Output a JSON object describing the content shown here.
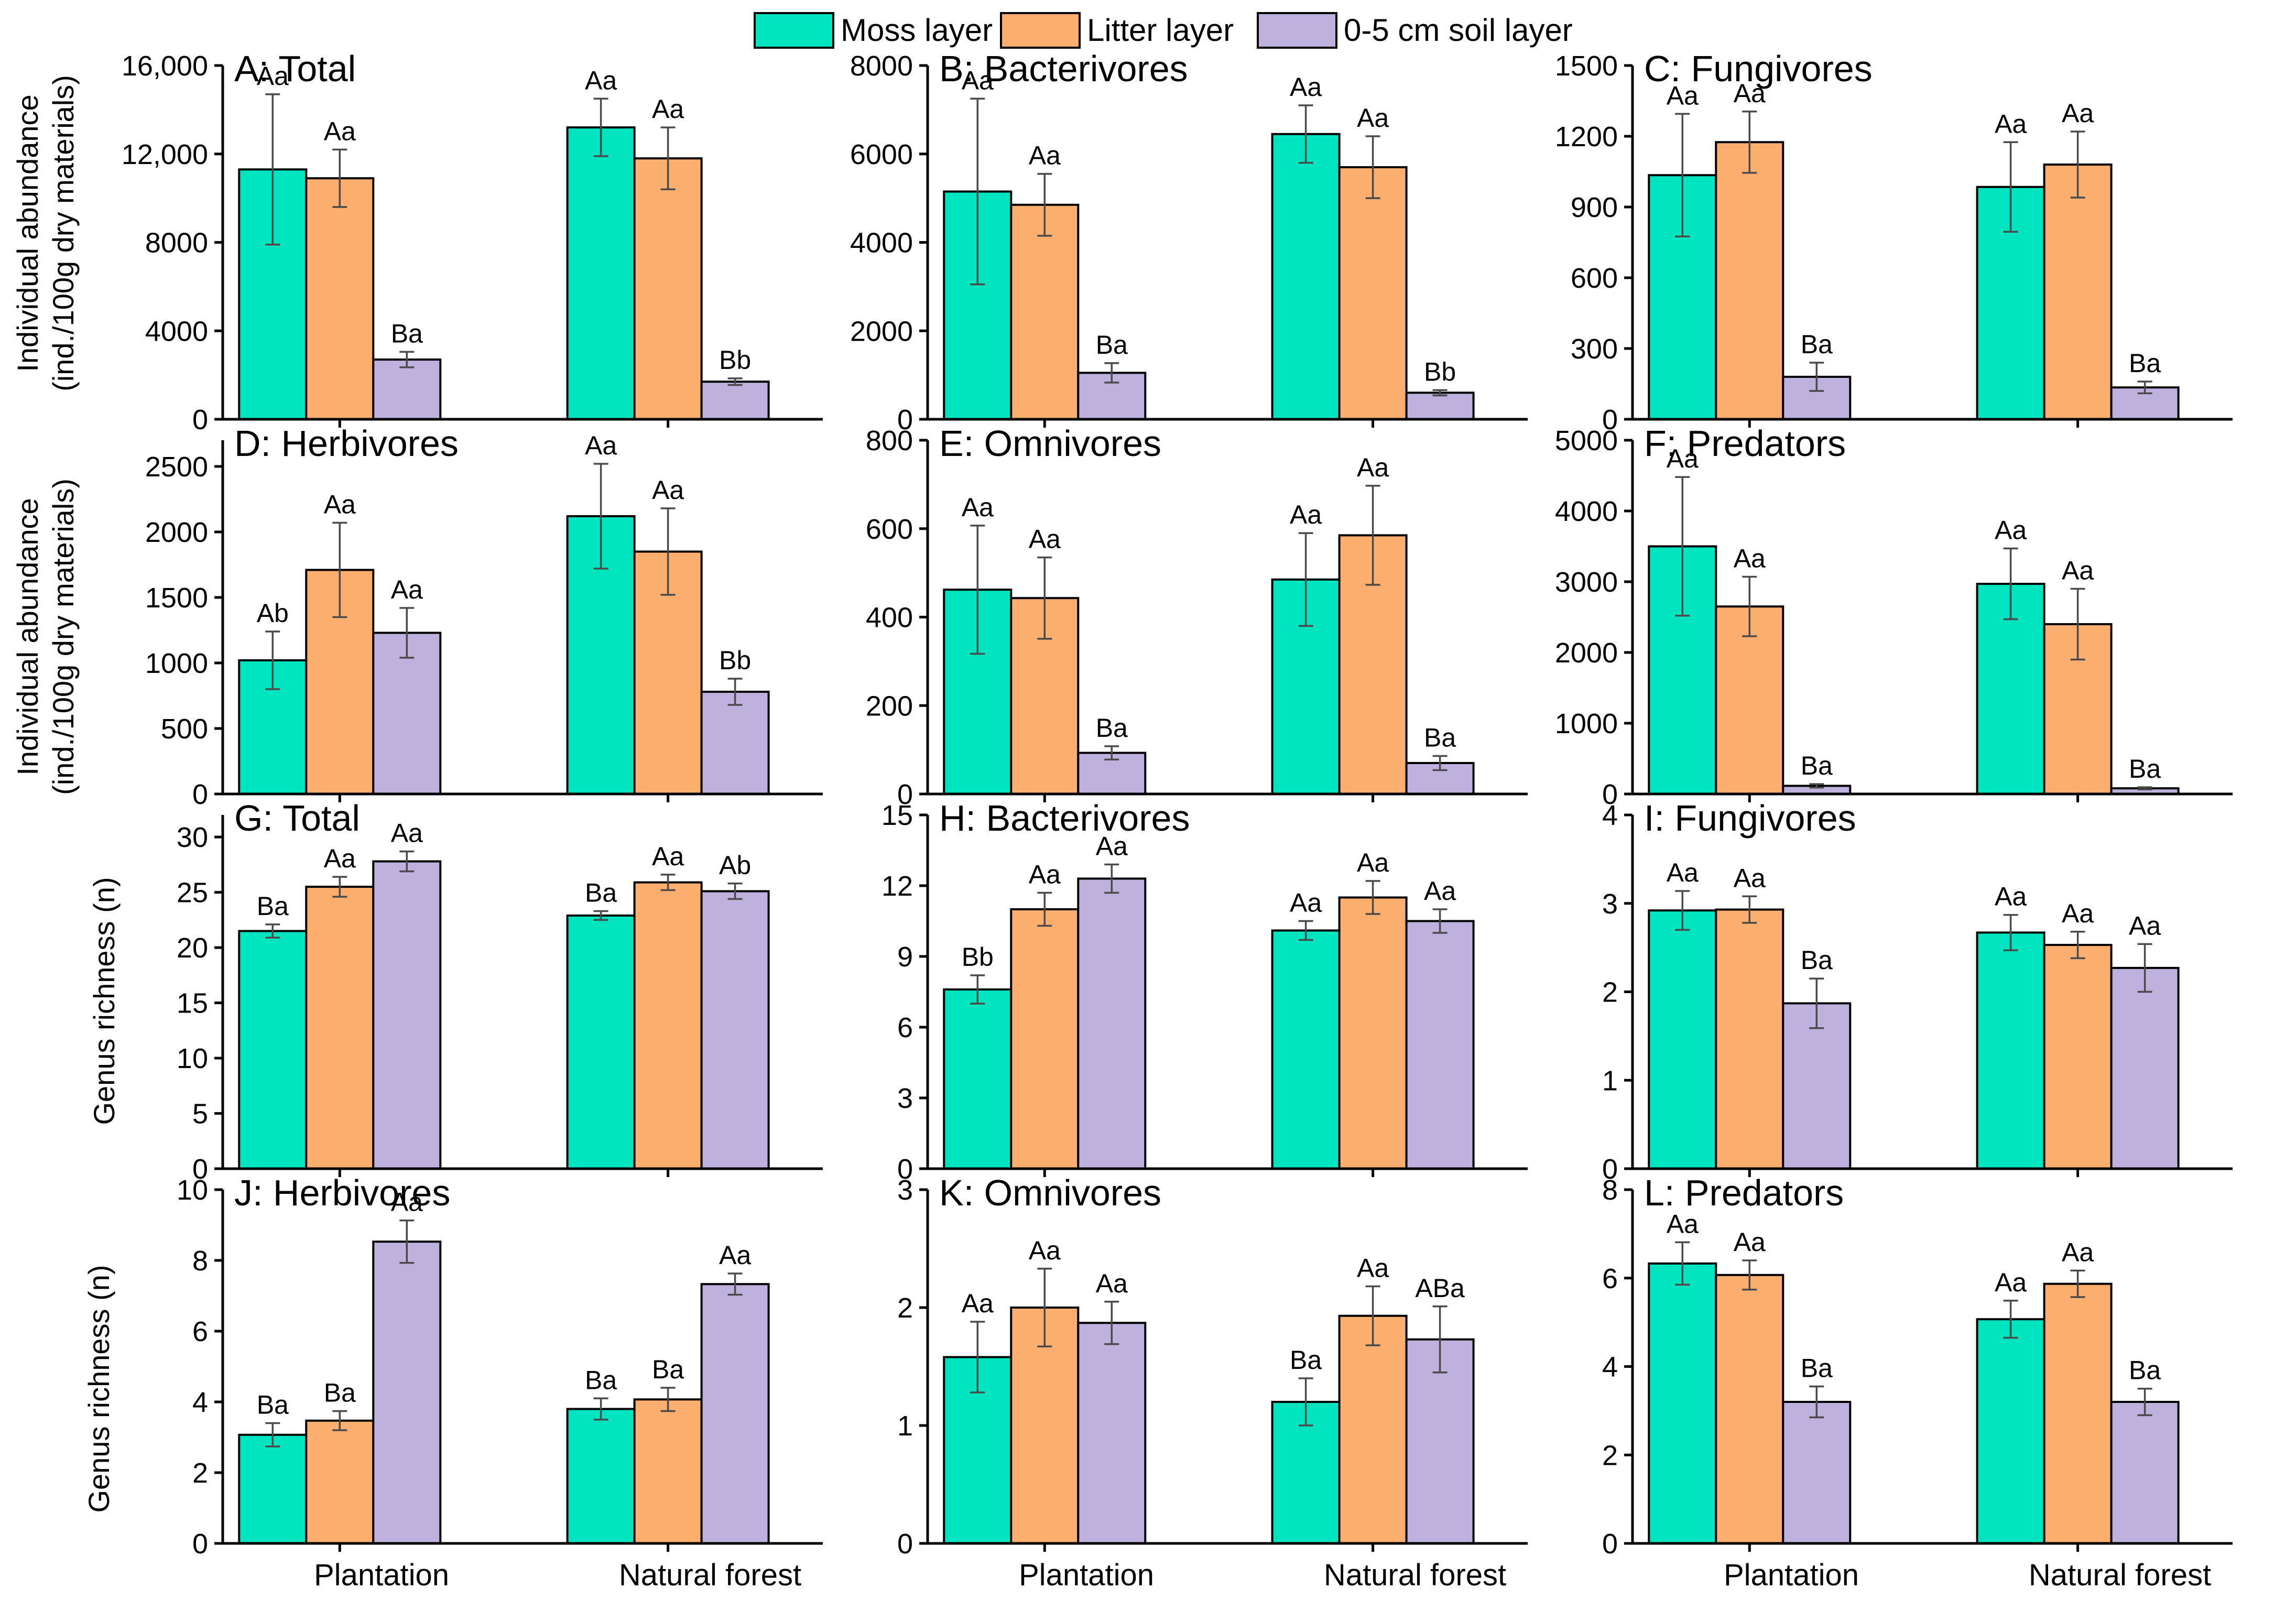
{
  "colors": {
    "moss": "#00E5C0",
    "litter": "#FBAE6E",
    "soil": "#BFB1DD"
  },
  "legend": [
    {
      "key": "moss",
      "label": "Moss layer"
    },
    {
      "key": "litter",
      "label": "Litter layer"
    },
    {
      "key": "soil",
      "label": "0-5 cm soil layer"
    }
  ],
  "y_labels": {
    "abundance": [
      "Individual abundance",
      "(ind./100g dry materials)"
    ],
    "richness": [
      "Genus richness (n)"
    ]
  },
  "categories": [
    "Plantation",
    "Natural forest"
  ],
  "chart_data": [
    {
      "type": "bar",
      "id": "A",
      "title": "A: Total",
      "ylabel": "Individual abundance (ind./100g dry materials)",
      "ylim": [
        0,
        16000
      ],
      "ticks": [
        0,
        4000,
        8000,
        12000,
        16000
      ],
      "tick_labels": [
        "0",
        "4000",
        "8000",
        "12,000",
        "16,000"
      ],
      "categories": [
        "Plantation",
        "Natural forest"
      ],
      "series": [
        {
          "name": "Moss layer",
          "values": [
            11300,
            13200
          ],
          "errors": [
            3400,
            1300
          ],
          "labels": [
            "Aa",
            "Aa"
          ]
        },
        {
          "name": "Litter layer",
          "values": [
            10900,
            11800
          ],
          "errors": [
            1300,
            1400
          ],
          "labels": [
            "Aa",
            "Aa"
          ]
        },
        {
          "name": "0-5 cm soil layer",
          "values": [
            2700,
            1700
          ],
          "errors": [
            350,
            150
          ],
          "labels": [
            "Ba",
            "Bb"
          ]
        }
      ]
    },
    {
      "type": "bar",
      "id": "B",
      "title": "B: Bacterivores",
      "ylabel": "",
      "ylim": [
        0,
        8000
      ],
      "ticks": [
        0,
        2000,
        4000,
        6000,
        8000
      ],
      "tick_labels": [
        "0",
        "2000",
        "4000",
        "6000",
        "8000"
      ],
      "categories": [
        "Plantation",
        "Natural forest"
      ],
      "series": [
        {
          "name": "Moss layer",
          "values": [
            5150,
            6450
          ],
          "errors": [
            2100,
            650
          ],
          "labels": [
            "Aa",
            "Aa"
          ]
        },
        {
          "name": "Litter layer",
          "values": [
            4850,
            5700
          ],
          "errors": [
            700,
            700
          ],
          "labels": [
            "Aa",
            "Aa"
          ]
        },
        {
          "name": "0-5 cm soil layer",
          "values": [
            1050,
            600
          ],
          "errors": [
            220,
            60
          ],
          "labels": [
            "Ba",
            "Bb"
          ]
        }
      ]
    },
    {
      "type": "bar",
      "id": "C",
      "title": "C: Fungivores",
      "ylabel": "",
      "ylim": [
        0,
        1500
      ],
      "ticks": [
        0,
        300,
        600,
        900,
        1200,
        1500
      ],
      "tick_labels": [
        "0",
        "300",
        "600",
        "900",
        "1200",
        "1500"
      ],
      "categories": [
        "Plantation",
        "Natural forest"
      ],
      "series": [
        {
          "name": "Moss layer",
          "values": [
            1035,
            985
          ],
          "errors": [
            260,
            190
          ],
          "labels": [
            "Aa",
            "Aa"
          ]
        },
        {
          "name": "Litter layer",
          "values": [
            1175,
            1080
          ],
          "errors": [
            130,
            140
          ],
          "labels": [
            "Aa",
            "Aa"
          ]
        },
        {
          "name": "0-5 cm soil layer",
          "values": [
            180,
            135
          ],
          "errors": [
            60,
            25
          ],
          "labels": [
            "Ba",
            "Ba"
          ]
        }
      ]
    },
    {
      "type": "bar",
      "id": "D",
      "title": "D: Herbivores",
      "ylabel": "Individual abundance (ind./100g dry materials)",
      "ylim": [
        0,
        2700
      ],
      "ticks": [
        0,
        500,
        1000,
        1500,
        2000,
        2500
      ],
      "tick_labels": [
        "0",
        "500",
        "1000",
        "1500",
        "2000",
        "2500"
      ],
      "categories": [
        "Plantation",
        "Natural forest"
      ],
      "series": [
        {
          "name": "Moss layer",
          "values": [
            1020,
            2120
          ],
          "errors": [
            220,
            400
          ],
          "labels": [
            "Ab",
            "Aa"
          ]
        },
        {
          "name": "Litter layer",
          "values": [
            1710,
            1850
          ],
          "errors": [
            360,
            330
          ],
          "labels": [
            "Aa",
            "Aa"
          ]
        },
        {
          "name": "0-5 cm soil layer",
          "values": [
            1230,
            780
          ],
          "errors": [
            190,
            100
          ],
          "labels": [
            "Aa",
            "Bb"
          ]
        }
      ]
    },
    {
      "type": "bar",
      "id": "E",
      "title": "E: Omnivores",
      "ylabel": "",
      "ylim": [
        0,
        800
      ],
      "ticks": [
        0,
        200,
        400,
        600,
        800
      ],
      "tick_labels": [
        "0",
        "200",
        "400",
        "600",
        "800"
      ],
      "categories": [
        "Plantation",
        "Natural forest"
      ],
      "series": [
        {
          "name": "Moss layer",
          "values": [
            462,
            485
          ],
          "errors": [
            145,
            105
          ],
          "labels": [
            "Aa",
            "Aa"
          ]
        },
        {
          "name": "Litter layer",
          "values": [
            443,
            585
          ],
          "errors": [
            92,
            112
          ],
          "labels": [
            "Aa",
            "Aa"
          ]
        },
        {
          "name": "0-5 cm soil layer",
          "values": [
            93,
            70
          ],
          "errors": [
            15,
            16
          ],
          "labels": [
            "Ba",
            "Ba"
          ]
        }
      ]
    },
    {
      "type": "bar",
      "id": "F",
      "title": "F: Predators",
      "ylabel": "",
      "ylim": [
        0,
        5000
      ],
      "ticks": [
        0,
        1000,
        2000,
        3000,
        4000,
        5000
      ],
      "tick_labels": [
        "0",
        "1000",
        "2000",
        "3000",
        "4000",
        "5000"
      ],
      "categories": [
        "Plantation",
        "Natural forest"
      ],
      "series": [
        {
          "name": "Moss layer",
          "values": [
            3500,
            2970
          ],
          "errors": [
            980,
            500
          ],
          "labels": [
            "Aa",
            "Aa"
          ]
        },
        {
          "name": "Litter layer",
          "values": [
            2650,
            2400
          ],
          "errors": [
            420,
            500
          ],
          "labels": [
            "Aa",
            "Aa"
          ]
        },
        {
          "name": "0-5 cm soil layer",
          "values": [
            115,
            80
          ],
          "errors": [
            25,
            15
          ],
          "labels": [
            "Ba",
            "Ba"
          ]
        }
      ]
    },
    {
      "type": "bar",
      "id": "G",
      "title": "G: Total",
      "ylabel": "Genus richness (n)",
      "ylim": [
        0,
        32
      ],
      "ticks": [
        0,
        5,
        10,
        15,
        20,
        25,
        30
      ],
      "tick_labels": [
        "0",
        "5",
        "10",
        "15",
        "20",
        "25",
        "30"
      ],
      "categories": [
        "Plantation",
        "Natural forest"
      ],
      "series": [
        {
          "name": "Moss layer",
          "values": [
            21.5,
            22.9
          ],
          "errors": [
            0.6,
            0.4
          ],
          "labels": [
            "Ba",
            "Ba"
          ]
        },
        {
          "name": "Litter layer",
          "values": [
            25.5,
            25.9
          ],
          "errors": [
            0.9,
            0.7
          ],
          "labels": [
            "Aa",
            "Aa"
          ]
        },
        {
          "name": "0-5 cm soil layer",
          "values": [
            27.8,
            25.1
          ],
          "errors": [
            0.9,
            0.7
          ],
          "labels": [
            "Aa",
            "Ab"
          ]
        }
      ]
    },
    {
      "type": "bar",
      "id": "H",
      "title": "H: Bacterivores",
      "ylabel": "",
      "ylim": [
        0,
        15
      ],
      "ticks": [
        0,
        3,
        6,
        9,
        12,
        15
      ],
      "tick_labels": [
        "0",
        "3",
        "6",
        "9",
        "12",
        "15"
      ],
      "categories": [
        "Plantation",
        "Natural forest"
      ],
      "series": [
        {
          "name": "Moss layer",
          "values": [
            7.6,
            10.1
          ],
          "errors": [
            0.6,
            0.4
          ],
          "labels": [
            "Bb",
            "Aa"
          ]
        },
        {
          "name": "Litter layer",
          "values": [
            11.0,
            11.5
          ],
          "errors": [
            0.7,
            0.7
          ],
          "labels": [
            "Aa",
            "Aa"
          ]
        },
        {
          "name": "0-5 cm soil layer",
          "values": [
            12.3,
            10.5
          ],
          "errors": [
            0.6,
            0.5
          ],
          "labels": [
            "Aa",
            "Aa"
          ]
        }
      ]
    },
    {
      "type": "bar",
      "id": "I",
      "title": "I: Fungivores",
      "ylabel": "",
      "ylim": [
        0,
        4
      ],
      "ticks": [
        0,
        1,
        2,
        3,
        4
      ],
      "tick_labels": [
        "0",
        "1",
        "2",
        "3",
        "4"
      ],
      "categories": [
        "Plantation",
        "Natural forest"
      ],
      "series": [
        {
          "name": "Moss layer",
          "values": [
            2.92,
            2.67
          ],
          "errors": [
            0.22,
            0.2
          ],
          "labels": [
            "Aa",
            "Aa"
          ]
        },
        {
          "name": "Litter layer",
          "values": [
            2.93,
            2.53
          ],
          "errors": [
            0.15,
            0.15
          ],
          "labels": [
            "Aa",
            "Aa"
          ]
        },
        {
          "name": "0-5 cm soil layer",
          "values": [
            1.87,
            2.27
          ],
          "errors": [
            0.28,
            0.27
          ],
          "labels": [
            "Ba",
            "Aa"
          ]
        }
      ]
    },
    {
      "type": "bar",
      "id": "J",
      "title": "J: Herbivores",
      "ylabel": "Genus richness (n)",
      "ylim": [
        0,
        10
      ],
      "ticks": [
        0,
        2,
        4,
        6,
        8,
        10
      ],
      "tick_labels": [
        "0",
        "2",
        "4",
        "6",
        "8",
        "10"
      ],
      "categories": [
        "Plantation",
        "Natural forest"
      ],
      "series": [
        {
          "name": "Moss layer",
          "values": [
            3.07,
            3.8
          ],
          "errors": [
            0.33,
            0.3
          ],
          "labels": [
            "Ba",
            "Ba"
          ]
        },
        {
          "name": "Litter layer",
          "values": [
            3.47,
            4.07
          ],
          "errors": [
            0.27,
            0.33
          ],
          "labels": [
            "Ba",
            "Ba"
          ]
        },
        {
          "name": "0-5 cm soil layer",
          "values": [
            8.53,
            7.33
          ],
          "errors": [
            0.6,
            0.3
          ],
          "labels": [
            "Aa",
            "Aa"
          ]
        }
      ]
    },
    {
      "type": "bar",
      "id": "K",
      "title": "K: Omnivores",
      "ylabel": "",
      "ylim": [
        0,
        3
      ],
      "ticks": [
        0,
        1,
        2,
        3
      ],
      "tick_labels": [
        "0",
        "1",
        "2",
        "3"
      ],
      "categories": [
        "Plantation",
        "Natural forest"
      ],
      "series": [
        {
          "name": "Moss layer",
          "values": [
            1.58,
            1.2
          ],
          "errors": [
            0.3,
            0.2
          ],
          "labels": [
            "Aa",
            "Ba"
          ]
        },
        {
          "name": "Litter layer",
          "values": [
            2.0,
            1.93
          ],
          "errors": [
            0.33,
            0.25
          ],
          "labels": [
            "Aa",
            "Aa"
          ]
        },
        {
          "name": "0-5 cm soil layer",
          "values": [
            1.87,
            1.73
          ],
          "errors": [
            0.18,
            0.28
          ],
          "labels": [
            "Aa",
            "ABa"
          ]
        }
      ]
    },
    {
      "type": "bar",
      "id": "L",
      "title": "L: Predators",
      "ylabel": "",
      "ylim": [
        0,
        8
      ],
      "ticks": [
        0,
        2,
        4,
        6,
        8
      ],
      "tick_labels": [
        "0",
        "2",
        "4",
        "6",
        "8"
      ],
      "categories": [
        "Plantation",
        "Natural forest"
      ],
      "series": [
        {
          "name": "Moss layer",
          "values": [
            6.33,
            5.07
          ],
          "errors": [
            0.48,
            0.42
          ],
          "labels": [
            "Aa",
            "Aa"
          ]
        },
        {
          "name": "Litter layer",
          "values": [
            6.07,
            5.87
          ],
          "errors": [
            0.33,
            0.3
          ],
          "labels": [
            "Aa",
            "Aa"
          ]
        },
        {
          "name": "0-5 cm soil layer",
          "values": [
            3.2,
            3.2
          ],
          "errors": [
            0.35,
            0.3
          ],
          "labels": [
            "Ba",
            "Ba"
          ]
        }
      ]
    }
  ]
}
